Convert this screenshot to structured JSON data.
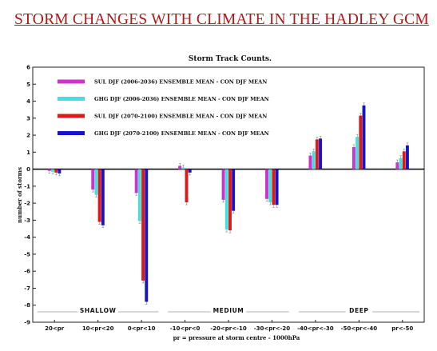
{
  "page": {
    "title": "STORM CHANGES WITH CLIMATE IN THE HADLEY GCM"
  },
  "chart_data": {
    "type": "bar",
    "title": "Storm Track Counts.",
    "ylabel": "number of storms",
    "xlabel": "pr = pressure at storm centre - 1000hPa",
    "ylim": [
      -9,
      6
    ],
    "yticks": [
      6,
      5,
      4,
      3,
      2,
      1,
      0,
      -1,
      -2,
      -3,
      -4,
      -5,
      -6,
      -7,
      -8,
      -9
    ],
    "categories": [
      "20<pr",
      "10<pr<20",
      "0<pr<10",
      "-10<pr<0",
      "-20<pr<-10",
      "-30<pr<-20",
      "-40<pr<-30",
      "-50<pr<-40",
      "pr<-50"
    ],
    "groups": [
      {
        "label": "SHALLOW",
        "from": 0,
        "to": 2
      },
      {
        "label": "MEDIUM",
        "from": 3,
        "to": 5
      },
      {
        "label": "DEEP",
        "from": 6,
        "to": 8
      }
    ],
    "series": [
      {
        "name": "SUL DJF (2006-2036) ENSEMBLE MEAN - CON DJF MEAN",
        "color": "#cc33cc",
        "values": [
          -0.1,
          -1.2,
          -1.4,
          0.2,
          -1.8,
          -1.75,
          0.8,
          1.3,
          0.4
        ]
      },
      {
        "name": "GHG DJF (2006-2036) ENSEMBLE MEAN - CON DJF MEAN",
        "color": "#44e0dc",
        "values": [
          -0.15,
          -1.5,
          -3.05,
          0.1,
          -3.55,
          -1.95,
          1.05,
          1.9,
          0.65
        ]
      },
      {
        "name": "SUL DJF (2070-2100) ENSEMBLE MEAN - CON DJF MEAN",
        "color": "#e01818",
        "values": [
          -0.2,
          -3.1,
          -6.55,
          -1.95,
          -3.6,
          -2.1,
          1.75,
          3.15,
          1.05
        ]
      },
      {
        "name": "GHG DJF (2070-2100) ENSEMBLE MEAN - CON DJF MEAN",
        "color": "#1515c8",
        "values": [
          -0.25,
          -3.3,
          -7.8,
          -0.2,
          -2.45,
          -2.1,
          1.8,
          3.75,
          1.4
        ]
      }
    ],
    "legend": "top-left, inside plot",
    "grid": false
  }
}
